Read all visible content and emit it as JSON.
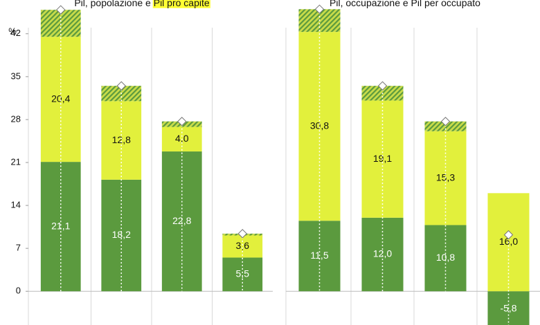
{
  "chart_data": [
    {
      "type": "bar",
      "title": "Pil, popolazione e",
      "title_highlight": "Pil pro capite",
      "y_label": "%",
      "categories": [
        null,
        null,
        null,
        null
      ],
      "ylim": [
        -5.5,
        47.5
      ],
      "yticks": [
        0,
        7,
        14,
        21,
        28,
        35,
        42
      ],
      "series": [
        {
          "color": "#5b9a3e",
          "values": [
            21.1,
            18.2,
            22.8,
            5.5
          ],
          "value_labels": [
            "21,1",
            "18,2",
            "22,8",
            "5,5"
          ]
        },
        {
          "color": "#e2f03c",
          "values": [
            20.4,
            12.8,
            4.0,
            3.6
          ],
          "value_labels": [
            "20,4",
            "12,8",
            "4,0",
            "3,6"
          ]
        },
        {
          "color": "#5b9a3e",
          "pattern": "hatched",
          "values": [
            4.4,
            2.5,
            0.9,
            0.3
          ]
        },
        {
          "color": "#ffffff",
          "marker": "diamond",
          "values": [
            45.9,
            33.5,
            27.7,
            9.4
          ]
        }
      ]
    },
    {
      "type": "bar",
      "title": "Pil, occupazione e Pil per occupato",
      "categories": [
        null,
        null,
        null,
        null
      ],
      "ylim": [
        -5.5,
        47.5
      ],
      "series": [
        {
          "color": "#5b9a3e",
          "values": [
            11.5,
            12.0,
            10.8,
            -5.8
          ],
          "value_labels": [
            "11,5",
            "12,0",
            "10,8",
            "-5,8"
          ]
        },
        {
          "color": "#e2f03c",
          "values": [
            30.8,
            19.1,
            15.3,
            16.0
          ],
          "value_labels": [
            "30,8",
            "19,1",
            "15,3",
            "16,0"
          ]
        },
        {
          "color": "#5b9a3e",
          "pattern": "hatched",
          "values": [
            3.7,
            2.4,
            1.6,
            null
          ]
        },
        {
          "color": "#ffffff",
          "marker": "diamond",
          "values": [
            46.0,
            33.5,
            27.7,
            9.2
          ]
        }
      ]
    }
  ]
}
